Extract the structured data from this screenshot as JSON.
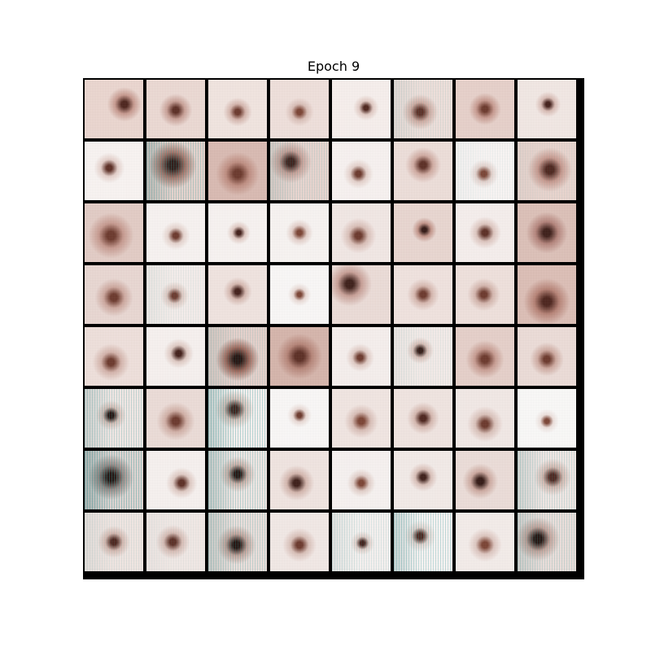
{
  "title": "Epoch 9",
  "grid": {
    "rows": 8,
    "cols": 8,
    "border_color": "#000000",
    "tiles": [
      {
        "blob": "#4a2018",
        "intensity": 0.75,
        "fx": 0.68,
        "fy": 0.42,
        "spread": 0.3,
        "halo": "#c99a8f",
        "edge": "#eed9d2",
        "cyan": 0
      },
      {
        "blob": "#5a2a20",
        "intensity": 0.55,
        "fx": 0.5,
        "fy": 0.52,
        "spread": 0.35,
        "halo": "#caa096",
        "edge": "#efdcd6",
        "cyan": 0
      },
      {
        "blob": "#6a3528",
        "intensity": 0.4,
        "fx": 0.5,
        "fy": 0.55,
        "spread": 0.3,
        "halo": "#d7b6ad",
        "edge": "#f5e8e3",
        "cyan": 0
      },
      {
        "blob": "#7a4030",
        "intensity": 0.35,
        "fx": 0.5,
        "fy": 0.55,
        "spread": 0.3,
        "halo": "#dcc0b8",
        "edge": "#f3e3de",
        "cyan": 0
      },
      {
        "blob": "#4a2018",
        "intensity": 0.6,
        "fx": 0.58,
        "fy": 0.48,
        "spread": 0.25,
        "halo": "#e3cbc4",
        "edge": "#fbf3f0",
        "cyan": 0
      },
      {
        "blob": "#5a2a20",
        "intensity": 0.55,
        "fx": 0.45,
        "fy": 0.55,
        "spread": 0.35,
        "halo": "#d3ada3",
        "edge": "#f2e3de",
        "cyan": 0.2
      },
      {
        "blob": "#6a3528",
        "intensity": 0.45,
        "fx": 0.5,
        "fy": 0.5,
        "spread": 0.35,
        "halo": "#c8998e",
        "edge": "#ead3cc",
        "cyan": 0
      },
      {
        "blob": "#3f1a14",
        "intensity": 0.7,
        "fx": 0.52,
        "fy": 0.42,
        "spread": 0.25,
        "halo": "#dbbdb5",
        "edge": "#f6ebe7",
        "cyan": 0
      },
      {
        "blob": "#5a2a20",
        "intensity": 0.6,
        "fx": 0.42,
        "fy": 0.45,
        "spread": 0.3,
        "halo": "#e7d2cc",
        "edge": "#fdf8f6",
        "cyan": 0
      },
      {
        "blob": "#2a1410",
        "intensity": 0.9,
        "fx": 0.45,
        "fy": 0.4,
        "spread": 0.45,
        "halo": "#a77468",
        "edge": "#e9d6d0",
        "cyan": 0.6
      },
      {
        "blob": "#6a3528",
        "intensity": 0.4,
        "fx": 0.5,
        "fy": 0.55,
        "spread": 0.45,
        "halo": "#c08d80",
        "edge": "#dcbcb3",
        "cyan": 0
      },
      {
        "blob": "#3a1a14",
        "intensity": 0.75,
        "fx": 0.35,
        "fy": 0.35,
        "spread": 0.35,
        "halo": "#c9a097",
        "edge": "#ecd8d2",
        "cyan": 0.3
      },
      {
        "blob": "#6a3528",
        "intensity": 0.4,
        "fx": 0.45,
        "fy": 0.55,
        "spread": 0.3,
        "halo": "#e7d3cd",
        "edge": "#fcf6f4",
        "cyan": 0
      },
      {
        "blob": "#5a2a20",
        "intensity": 0.6,
        "fx": 0.5,
        "fy": 0.4,
        "spread": 0.35,
        "halo": "#d2aba1",
        "edge": "#f1e1dc",
        "cyan": 0
      },
      {
        "blob": "#7a4030",
        "intensity": 0.4,
        "fx": 0.48,
        "fy": 0.55,
        "spread": 0.3,
        "halo": "#e8d6d1",
        "edge": "#fdf9f8",
        "cyan": 0.1
      },
      {
        "blob": "#4a2018",
        "intensity": 0.65,
        "fx": 0.55,
        "fy": 0.48,
        "spread": 0.45,
        "halo": "#c9998e",
        "edge": "#ecd7d0",
        "cyan": 0.1
      },
      {
        "blob": "#6a3528",
        "intensity": 0.5,
        "fx": 0.45,
        "fy": 0.55,
        "spread": 0.45,
        "halo": "#c89a8f",
        "edge": "#e6cec7",
        "cyan": 0
      },
      {
        "blob": "#6a3528",
        "intensity": 0.4,
        "fx": 0.5,
        "fy": 0.55,
        "spread": 0.3,
        "halo": "#e8d6d0",
        "edge": "#fcf7f5",
        "cyan": 0
      },
      {
        "blob": "#3f1a14",
        "intensity": 0.7,
        "fx": 0.52,
        "fy": 0.5,
        "spread": 0.25,
        "halo": "#e3cbc4",
        "edge": "#fcf7f5",
        "cyan": 0
      },
      {
        "blob": "#7a4030",
        "intensity": 0.4,
        "fx": 0.5,
        "fy": 0.5,
        "spread": 0.3,
        "halo": "#e6d1cb",
        "edge": "#fcf8f6",
        "cyan": 0
      },
      {
        "blob": "#6a3528",
        "intensity": 0.45,
        "fx": 0.45,
        "fy": 0.55,
        "spread": 0.35,
        "halo": "#dcc0b8",
        "edge": "#f6ebe8",
        "cyan": 0
      },
      {
        "blob": "#2f140f",
        "intensity": 0.85,
        "fx": 0.52,
        "fy": 0.45,
        "spread": 0.25,
        "halo": "#c49488",
        "edge": "#ecd9d3",
        "cyan": 0
      },
      {
        "blob": "#5a2a20",
        "intensity": 0.55,
        "fx": 0.5,
        "fy": 0.5,
        "spread": 0.35,
        "halo": "#e0c7c0",
        "edge": "#faf2f0",
        "cyan": 0
      },
      {
        "blob": "#3a1a14",
        "intensity": 0.75,
        "fx": 0.5,
        "fy": 0.5,
        "spread": 0.45,
        "halo": "#b5837a",
        "edge": "#dfc2b9",
        "cyan": 0
      },
      {
        "blob": "#6a3528",
        "intensity": 0.45,
        "fx": 0.5,
        "fy": 0.55,
        "spread": 0.4,
        "halo": "#cfa89e",
        "edge": "#ecdad5",
        "cyan": 0
      },
      {
        "blob": "#6a3528",
        "intensity": 0.45,
        "fx": 0.48,
        "fy": 0.52,
        "spread": 0.3,
        "halo": "#e2ccc5",
        "edge": "#f9f1ee",
        "cyan": 0.15
      },
      {
        "blob": "#3f1a14",
        "intensity": 0.7,
        "fx": 0.5,
        "fy": 0.45,
        "spread": 0.3,
        "halo": "#d8b9b0",
        "edge": "#f4e7e3",
        "cyan": 0
      },
      {
        "blob": "#7a4030",
        "intensity": 0.35,
        "fx": 0.5,
        "fy": 0.5,
        "spread": 0.25,
        "halo": "#ecdcd7",
        "edge": "#fefcfb",
        "cyan": 0
      },
      {
        "blob": "#3a1a14",
        "intensity": 0.8,
        "fx": 0.3,
        "fy": 0.32,
        "spread": 0.35,
        "halo": "#caa097",
        "edge": "#efdfda",
        "cyan": 0
      },
      {
        "blob": "#6a3528",
        "intensity": 0.5,
        "fx": 0.5,
        "fy": 0.5,
        "spread": 0.35,
        "halo": "#d9b9b0",
        "edge": "#f4e6e2",
        "cyan": 0
      },
      {
        "blob": "#6a3528",
        "intensity": 0.45,
        "fx": 0.48,
        "fy": 0.5,
        "spread": 0.35,
        "halo": "#d6b6ad",
        "edge": "#f3e4df",
        "cyan": 0
      },
      {
        "blob": "#4a2018",
        "intensity": 0.65,
        "fx": 0.5,
        "fy": 0.62,
        "spread": 0.45,
        "halo": "#b88275",
        "edge": "#dfc0b7",
        "cyan": 0
      },
      {
        "blob": "#6a3528",
        "intensity": 0.45,
        "fx": 0.45,
        "fy": 0.6,
        "spread": 0.35,
        "halo": "#d6b4ab",
        "edge": "#f2e3de",
        "cyan": 0
      },
      {
        "blob": "#3f1a14",
        "intensity": 0.7,
        "fx": 0.55,
        "fy": 0.45,
        "spread": 0.3,
        "halo": "#e2ccc5",
        "edge": "#fbf5f3",
        "cyan": 0
      },
      {
        "blob": "#1f0c08",
        "intensity": 0.95,
        "fx": 0.5,
        "fy": 0.55,
        "spread": 0.45,
        "halo": "#9e6558",
        "edge": "#e9d4ce",
        "cyan": 0.3
      },
      {
        "blob": "#5a2a20",
        "intensity": 0.6,
        "fx": 0.5,
        "fy": 0.5,
        "spread": 0.5,
        "halo": "#b78477",
        "edge": "#d8b6ac",
        "cyan": 0
      },
      {
        "blob": "#6a3528",
        "intensity": 0.45,
        "fx": 0.48,
        "fy": 0.52,
        "spread": 0.3,
        "halo": "#e3cdc6",
        "edge": "#faf3f1",
        "cyan": 0
      },
      {
        "blob": "#2f140f",
        "intensity": 0.8,
        "fx": 0.45,
        "fy": 0.4,
        "spread": 0.25,
        "halo": "#dcc1b9",
        "edge": "#f8efec",
        "cyan": 0.15
      },
      {
        "blob": "#6a3528",
        "intensity": 0.45,
        "fx": 0.5,
        "fy": 0.55,
        "spread": 0.4,
        "halo": "#c99c91",
        "edge": "#e9d2cb",
        "cyan": 0
      },
      {
        "blob": "#6a3528",
        "intensity": 0.45,
        "fx": 0.5,
        "fy": 0.55,
        "spread": 0.35,
        "halo": "#d0aaa0",
        "edge": "#efdfda",
        "cyan": 0
      },
      {
        "blob": "#1f0c08",
        "intensity": 0.9,
        "fx": 0.45,
        "fy": 0.45,
        "spread": 0.3,
        "halo": "#d9c0b8",
        "edge": "#f5ebe8",
        "cyan": 0.5
      },
      {
        "blob": "#6a3528",
        "intensity": 0.4,
        "fx": 0.5,
        "fy": 0.55,
        "spread": 0.4,
        "halo": "#d3b0a6",
        "edge": "#efdfda",
        "cyan": 0
      },
      {
        "blob": "#3a1a14",
        "intensity": 0.75,
        "fx": 0.45,
        "fy": 0.35,
        "spread": 0.35,
        "halo": "#dbc4bc",
        "edge": "#fbf6f4",
        "cyan": 0.7
      },
      {
        "blob": "#6a3528",
        "intensity": 0.45,
        "fx": 0.5,
        "fy": 0.45,
        "spread": 0.25,
        "halo": "#ecdcd7",
        "edge": "#fefcfb",
        "cyan": 0
      },
      {
        "blob": "#7a4030",
        "intensity": 0.35,
        "fx": 0.5,
        "fy": 0.55,
        "spread": 0.35,
        "halo": "#dbbfb7",
        "edge": "#f5e9e5",
        "cyan": 0
      },
      {
        "blob": "#4a2018",
        "intensity": 0.6,
        "fx": 0.5,
        "fy": 0.5,
        "spread": 0.35,
        "halo": "#d8b9b0",
        "edge": "#f4e8e4",
        "cyan": 0
      },
      {
        "blob": "#6a3528",
        "intensity": 0.45,
        "fx": 0.5,
        "fy": 0.6,
        "spread": 0.35,
        "halo": "#dcc2ba",
        "edge": "#f6ece9",
        "cyan": 0
      },
      {
        "blob": "#7a4030",
        "intensity": 0.35,
        "fx": 0.5,
        "fy": 0.55,
        "spread": 0.25,
        "halo": "#f0e3df",
        "edge": "#fefdfc",
        "cyan": 0
      },
      {
        "blob": "#1f0c08",
        "intensity": 0.9,
        "fx": 0.45,
        "fy": 0.45,
        "spread": 0.45,
        "halo": "#9c8a86",
        "edge": "#e2d8d5",
        "cyan": 0.8
      },
      {
        "blob": "#5a2a20",
        "intensity": 0.55,
        "fx": 0.6,
        "fy": 0.55,
        "spread": 0.3,
        "halo": "#e2ccc5",
        "edge": "#fbf5f3",
        "cyan": 0
      },
      {
        "blob": "#1f0c08",
        "intensity": 0.9,
        "fx": 0.5,
        "fy": 0.4,
        "spread": 0.35,
        "halo": "#cfb1a8",
        "edge": "#f4ebe8",
        "cyan": 0.6
      },
      {
        "blob": "#3a1a14",
        "intensity": 0.75,
        "fx": 0.45,
        "fy": 0.55,
        "spread": 0.35,
        "halo": "#d6b7ae",
        "edge": "#f4e8e4",
        "cyan": 0
      },
      {
        "blob": "#7a4030",
        "intensity": 0.35,
        "fx": 0.5,
        "fy": 0.55,
        "spread": 0.3,
        "halo": "#e4d0ca",
        "edge": "#fbf6f4",
        "cyan": 0
      },
      {
        "blob": "#3a1a14",
        "intensity": 0.75,
        "fx": 0.5,
        "fy": 0.45,
        "spread": 0.3,
        "halo": "#dcc1b9",
        "edge": "#f7eeeb",
        "cyan": 0
      },
      {
        "blob": "#2f140f",
        "intensity": 0.85,
        "fx": 0.42,
        "fy": 0.52,
        "spread": 0.35,
        "halo": "#cfaaa0",
        "edge": "#efe0db",
        "cyan": 0
      },
      {
        "blob": "#4a2018",
        "intensity": 0.65,
        "fx": 0.6,
        "fy": 0.45,
        "spread": 0.35,
        "halo": "#d7bab1",
        "edge": "#f5ebe8",
        "cyan": 0.4
      },
      {
        "blob": "#4a2018",
        "intensity": 0.6,
        "fx": 0.5,
        "fy": 0.5,
        "spread": 0.35,
        "halo": "#d8bab1",
        "edge": "#f4e9e5",
        "cyan": 0.2
      },
      {
        "blob": "#5a2a20",
        "intensity": 0.55,
        "fx": 0.45,
        "fy": 0.5,
        "spread": 0.35,
        "halo": "#dbbeb6",
        "edge": "#f6ece9",
        "cyan": 0.1
      },
      {
        "blob": "#1f0c08",
        "intensity": 0.85,
        "fx": 0.48,
        "fy": 0.55,
        "spread": 0.4,
        "halo": "#c4a39a",
        "edge": "#efe3df",
        "cyan": 0.5
      },
      {
        "blob": "#6a3528",
        "intensity": 0.45,
        "fx": 0.5,
        "fy": 0.55,
        "spread": 0.35,
        "halo": "#dcc2ba",
        "edge": "#f6ece9",
        "cyan": 0
      },
      {
        "blob": "#3f1a14",
        "intensity": 0.65,
        "fx": 0.52,
        "fy": 0.52,
        "spread": 0.25,
        "halo": "#e4d1cb",
        "edge": "#fbf6f4",
        "cyan": 0.3
      },
      {
        "blob": "#4a2018",
        "intensity": 0.6,
        "fx": 0.45,
        "fy": 0.4,
        "spread": 0.3,
        "halo": "#ead9d4",
        "edge": "#fdf9f8",
        "cyan": 0.6
      },
      {
        "blob": "#7a4030",
        "intensity": 0.35,
        "fx": 0.5,
        "fy": 0.55,
        "spread": 0.35,
        "halo": "#e0c8c1",
        "edge": "#f8f0ed",
        "cyan": 0
      },
      {
        "blob": "#1f0c08",
        "intensity": 0.85,
        "fx": 0.35,
        "fy": 0.45,
        "spread": 0.4,
        "halo": "#c8a59c",
        "edge": "#eee2de",
        "cyan": 0.4
      }
    ]
  }
}
